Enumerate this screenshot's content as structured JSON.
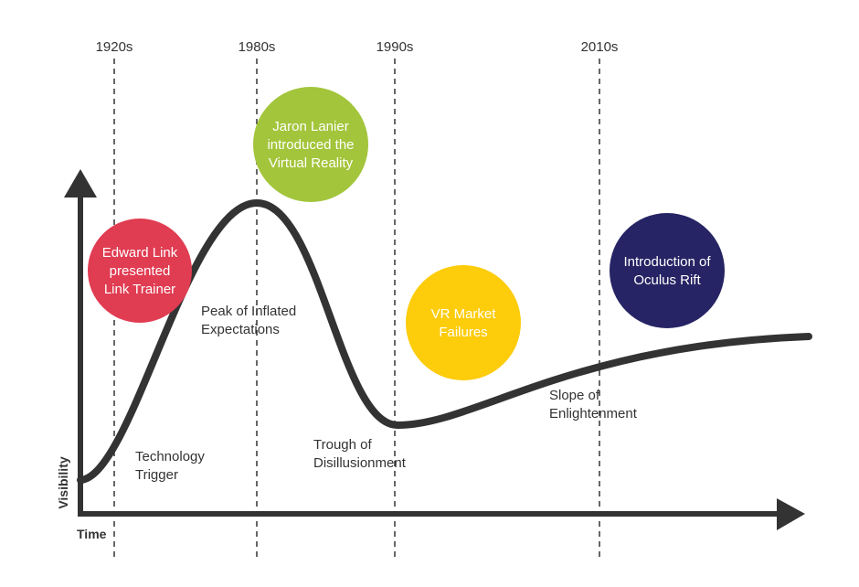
{
  "eras": [
    "1920s",
    "1980s",
    "1990s",
    "2010s"
  ],
  "events": [
    {
      "lines": [
        "Edward Link",
        "presented",
        "Link Trainer"
      ]
    },
    {
      "lines": [
        "Jaron Lanier",
        "introduced the",
        "Virtual Reality"
      ]
    },
    {
      "lines": [
        "VR Market",
        "Failures"
      ]
    },
    {
      "lines": [
        "Introduction of",
        "Oculus Rift"
      ]
    }
  ],
  "phases": [
    {
      "lines": [
        "Technology",
        "Trigger"
      ]
    },
    {
      "lines": [
        "Peak of Inflated",
        "Expectations"
      ]
    },
    {
      "lines": [
        "Trough of",
        "Disillusionment"
      ]
    },
    {
      "lines": [
        "Slope of",
        "Enlightenment"
      ]
    }
  ],
  "axes": {
    "y_label": "Visibility",
    "x_label": "Time"
  }
}
